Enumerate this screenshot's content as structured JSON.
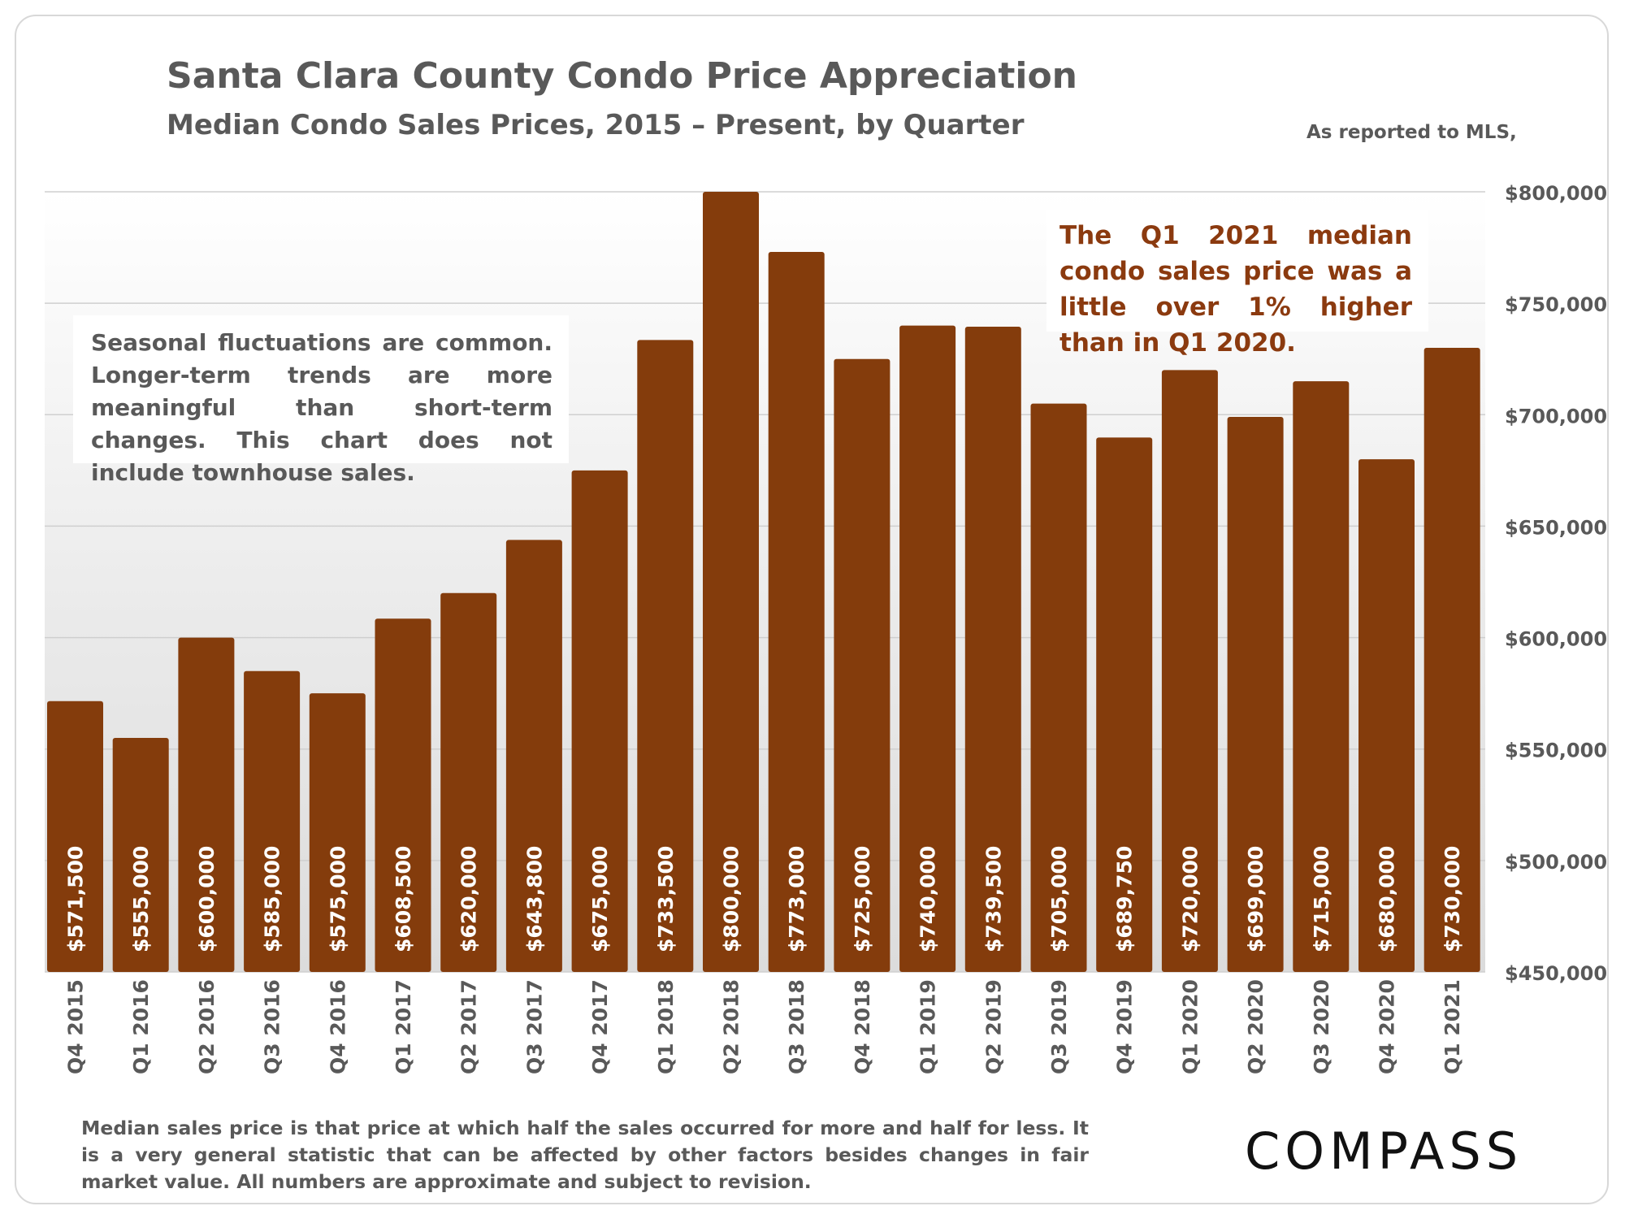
{
  "header": {
    "title": "Santa Clara County Condo Price Appreciation",
    "subtitle": "Median Condo Sales Prices, 2015 – Present, by Quarter",
    "source": "As reported to MLS,"
  },
  "notes": {
    "seasonal": "Seasonal fluctuations are common. Longer-term trends are more meaningful than short-term changes. This chart does not include townhouse sales.",
    "highlight": "The Q1 2021 median condo sales price was a little over 1% higher than in Q1 2020."
  },
  "footnote": "Median sales price is that price at which half the sales occurred for more and half for less. It is a very general statistic that can be affected by other factors besides changes in fair market value. All numbers are approximate and subject to revision.",
  "brand": {
    "logo": "COMPASS"
  },
  "colors": {
    "bar": "#843c0c",
    "highlight_text": "#8b3a0f",
    "grid": "#cfcfcf",
    "text": "#595959"
  },
  "chart_data": {
    "type": "bar",
    "categories": [
      "Q4 2015",
      "Q1 2016",
      "Q2 2016",
      "Q3 2016",
      "Q4 2016",
      "Q1 2017",
      "Q2 2017",
      "Q3 2017",
      "Q4 2017",
      "Q1 2018",
      "Q2 2018",
      "Q3 2018",
      "Q4 2018",
      "Q1 2019",
      "Q2 2019",
      "Q3 2019",
      "Q4 2019",
      "Q1 2020",
      "Q2 2020",
      "Q3 2020",
      "Q4 2020",
      "Q1 2021"
    ],
    "values": [
      571500,
      555000,
      600000,
      585000,
      575000,
      608500,
      620000,
      643800,
      675000,
      733500,
      800000,
      773000,
      725000,
      740000,
      739500,
      705000,
      689750,
      720000,
      699000,
      715000,
      680000,
      730000
    ],
    "data_labels": [
      "$571,500",
      "$555,000",
      "$600,000",
      "$585,000",
      "$575,000",
      "$608,500",
      "$620,000",
      "$643,800",
      "$675,000",
      "$733,500",
      "$800,000",
      "$773,000",
      "$725,000",
      "$740,000",
      "$739,500",
      "$705,000",
      "$689,750",
      "$720,000",
      "$699,000",
      "$715,000",
      "$680,000",
      "$730,000"
    ],
    "ylim": [
      450000,
      800000
    ],
    "yticks": [
      450000,
      500000,
      550000,
      600000,
      650000,
      700000,
      750000,
      800000
    ],
    "ytick_labels": [
      "$450,000",
      "$500,000",
      "$550,000",
      "$600,000",
      "$650,000",
      "$700,000",
      "$750,000",
      "$800,000"
    ],
    "y_axis_position": "right",
    "grid": true
  }
}
